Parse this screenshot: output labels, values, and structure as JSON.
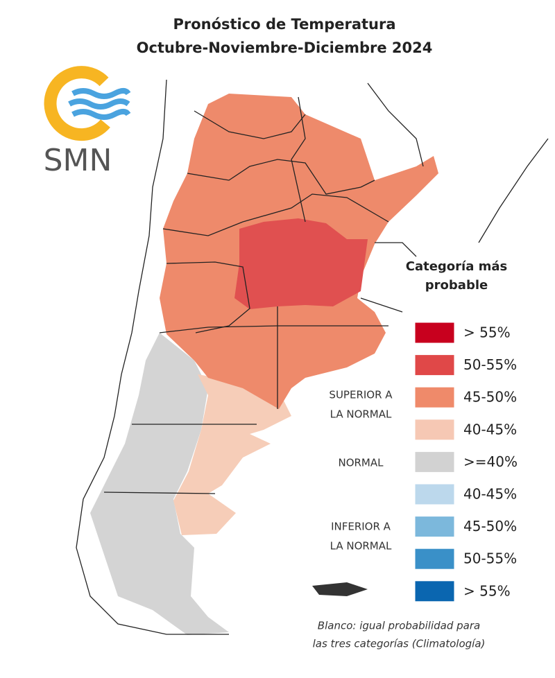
{
  "header": {
    "title_line1": "Pronóstico de Temperatura",
    "title_line2": "Octubre-Noviembre-Diciembre 2024"
  },
  "logo": {
    "text": "SMN"
  },
  "legend": {
    "title_line1": "Categoría más",
    "title_line2": "probable",
    "items": [
      {
        "label": "> 55%",
        "color": "#c8001e"
      },
      {
        "label": "50-55%",
        "color": "#e04848"
      },
      {
        "label": "45-50%",
        "color": "#ef8a6a"
      },
      {
        "label": "40-45%",
        "color": "#f6c8b4"
      },
      {
        "label": ">=40%",
        "color": "#d2d2d2"
      },
      {
        "label": "40-45%",
        "color": "#bcd8ec"
      },
      {
        "label": "45-50%",
        "color": "#7cb8dc"
      },
      {
        "label": "50-55%",
        "color": "#3a90c8"
      },
      {
        "label": "> 55%",
        "color": "#0a66b0"
      }
    ],
    "groups": [
      {
        "line1": "SUPERIOR A",
        "line2": "LA NORMAL"
      },
      {
        "line1": "NORMAL"
      },
      {
        "line1": "INFERIOR A",
        "line2": "LA NORMAL"
      }
    ]
  },
  "footnote": {
    "line1": "Blanco: igual probabilidad para",
    "line2": "las tres categorías (Climatología)"
  }
}
